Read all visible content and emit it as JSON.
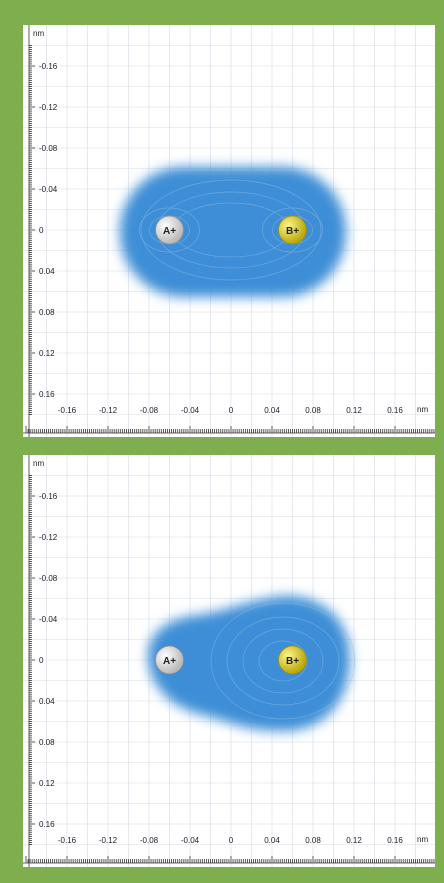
{
  "colors": {
    "background": "#7fae4f",
    "panel": "#ffffff",
    "grid": "#d6dbe6",
    "axis": "#333333",
    "cloud": "#3d8ed6",
    "atom_a": "#f2f2f2",
    "atom_b": "#e2d21c"
  },
  "axes": {
    "unit_label": "nm",
    "x_range": [
      -0.18,
      0.18
    ],
    "y_range": [
      -0.18,
      0.18
    ],
    "y_ticks": [
      {
        "value": -0.16,
        "label": "-0.16"
      },
      {
        "value": -0.12,
        "label": "-0.12"
      },
      {
        "value": -0.08,
        "label": "-0.08"
      },
      {
        "value": -0.04,
        "label": "-0.04"
      },
      {
        "value": 0,
        "label": "0"
      },
      {
        "value": 0.04,
        "label": "0.04"
      },
      {
        "value": 0.08,
        "label": "0.08"
      },
      {
        "value": 0.12,
        "label": "0.12"
      },
      {
        "value": 0.16,
        "label": "0.16"
      }
    ],
    "x_ticks": [
      {
        "value": -0.16,
        "label": "-0.16"
      },
      {
        "value": -0.12,
        "label": "-0.12"
      },
      {
        "value": -0.08,
        "label": "-0.08"
      },
      {
        "value": -0.04,
        "label": "-0.04"
      },
      {
        "value": 0,
        "label": "0"
      },
      {
        "value": 0.04,
        "label": "0.04"
      },
      {
        "value": 0.08,
        "label": "0.08"
      },
      {
        "value": 0.12,
        "label": "0.12"
      },
      {
        "value": 0.16,
        "label": "0.16"
      }
    ]
  },
  "panels": [
    {
      "cloud_shape": "symmetric",
      "atoms": [
        {
          "label": "A+",
          "x": -0.06,
          "y": 0,
          "color_key": "atom_a"
        },
        {
          "label": "B+",
          "x": 0.06,
          "y": 0,
          "color_key": "atom_b"
        }
      ]
    },
    {
      "cloud_shape": "polarized-toward-B",
      "atoms": [
        {
          "label": "A+",
          "x": -0.06,
          "y": 0,
          "color_key": "atom_a"
        },
        {
          "label": "B+",
          "x": 0.06,
          "y": 0,
          "color_key": "atom_b"
        }
      ]
    }
  ]
}
